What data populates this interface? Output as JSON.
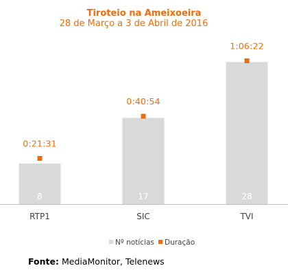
{
  "colors": {
    "accent": "#ED6D0C",
    "bar": "#D9D9D9",
    "bar_label": "#ffffff",
    "axis_text": "#404040",
    "axis_line": "#BFBFBF"
  },
  "chart_data": {
    "type": "bar",
    "title": "Tiroteio na Ameixoeira",
    "subtitle": "28 de Março  a 3 de Abril de 2016",
    "categories": [
      "RTP1",
      "SIC",
      "TVI"
    ],
    "series": [
      {
        "name": "Nº notícias",
        "kind": "bar",
        "values": [
          8,
          17,
          28
        ],
        "labels": [
          "8",
          "17",
          "28"
        ]
      },
      {
        "name": "Duração",
        "kind": "marker",
        "values_seconds": [
          1291,
          2454,
          3982
        ],
        "labels": [
          "0:21:31",
          "0:40:54",
          "1:06:22"
        ]
      }
    ],
    "ylim_bars": [
      0,
      30
    ],
    "grid": false,
    "legend_position": "bottom"
  },
  "source": {
    "label": "Fonte:",
    "text": "MediaMonitor, Telenews"
  }
}
